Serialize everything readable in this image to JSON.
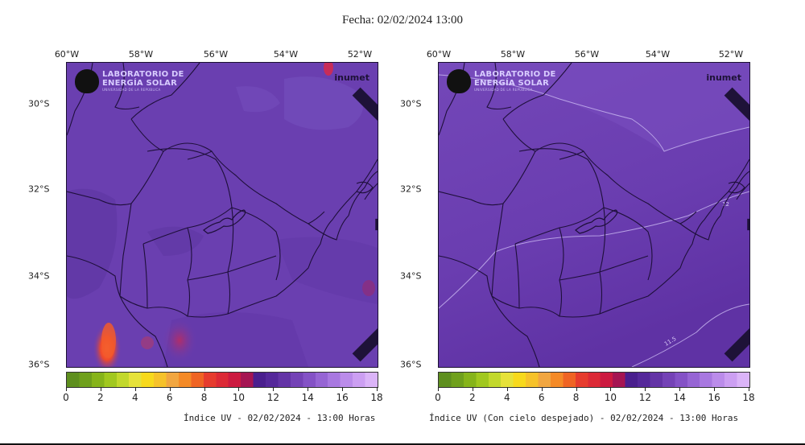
{
  "title": "Fecha: 02/02/2024 13:00",
  "panels": [
    {
      "id": "uv-index",
      "caption": "Índice UV - 02/02/2024 - 13:00 Horas",
      "logos": {
        "les_line1": "LABORATORIO DE",
        "les_line2": "ENERGÍA SOLAR",
        "les_sub": "UNIVERSIDAD DE LA REPÚBLICA",
        "inumet": "inumet"
      }
    },
    {
      "id": "uv-index-clear-sky",
      "caption": "Índice UV (Con cielo despejado) - 02/02/2024 - 13:00 Horas",
      "contour_labels": [
        "12",
        "11.5"
      ],
      "logos": {
        "les_line1": "LABORATORIO DE",
        "les_line2": "ENERGÍA SOLAR",
        "les_sub": "UNIVERSIDAD DE LA REPÚBLICA",
        "inumet": "inumet"
      }
    }
  ],
  "axes": {
    "longitude_ticks": [
      "60°W",
      "58°W",
      "56°W",
      "54°W",
      "52°W"
    ],
    "latitude_ticks": [
      "30°S",
      "32°S",
      "34°S",
      "36°S"
    ]
  },
  "colorbar": {
    "ticks": [
      "0",
      "2",
      "4",
      "6",
      "8",
      "10",
      "12",
      "14",
      "16",
      "18"
    ],
    "min": 0,
    "max": 18,
    "colors": [
      "#5e8f1e",
      "#6fa01c",
      "#86b41a",
      "#a1c81f",
      "#c2d82c",
      "#e6e23a",
      "#f7d91c",
      "#f6c22a",
      "#f1a640",
      "#f48a27",
      "#ef6424",
      "#e63c2e",
      "#dc2a36",
      "#cc1a40",
      "#a51552",
      "#4a1f8e",
      "#55289a",
      "#6434a6",
      "#7442b6",
      "#8452c6",
      "#9665d4",
      "#a878e0",
      "#bb8cea",
      "#cc9ff2",
      "#dbb4f8"
    ]
  },
  "map_colors": {
    "base_left": "#6a3fb0",
    "base_right": "#6a3cb0",
    "border_line": "#1e0f3a",
    "contour_line": "#c5b2ee",
    "hotspot": "#f04a2a"
  }
}
